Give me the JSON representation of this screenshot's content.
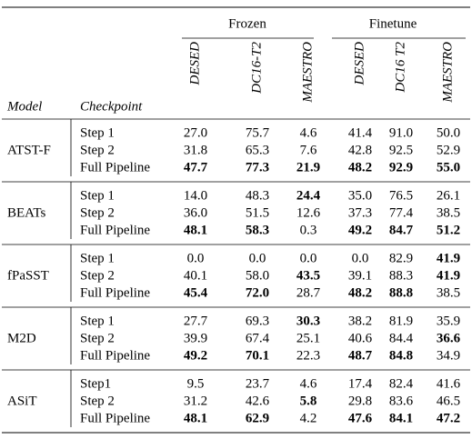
{
  "header": {
    "groups": [
      "Frozen",
      "Finetune"
    ],
    "columns": [
      "Model",
      "Checkpoint",
      "DESED",
      "DC16-T2",
      "MAESTRO",
      "DESED",
      "DC16 T2",
      "MAESTRO"
    ]
  },
  "table": {
    "groups": [
      {
        "model": "ATST-F",
        "rows": [
          {
            "checkpoint": "Step 1",
            "cells": [
              "27.0",
              "75.7",
              "4.6",
              "41.4",
              "91.0",
              "50.0"
            ],
            "bold": []
          },
          {
            "checkpoint": "Step 2",
            "cells": [
              "31.8",
              "65.3",
              "7.6",
              "42.8",
              "92.5",
              "52.9"
            ],
            "bold": []
          },
          {
            "checkpoint": "Full Pipeline",
            "cells": [
              "47.7",
              "77.3",
              "21.9",
              "48.2",
              "92.9",
              "55.0"
            ],
            "bold": [
              0,
              1,
              2,
              3,
              4,
              5
            ]
          }
        ]
      },
      {
        "model": "BEATs",
        "rows": [
          {
            "checkpoint": "Step 1",
            "cells": [
              "14.0",
              "48.3",
              "24.4",
              "35.0",
              "76.5",
              "26.1"
            ],
            "bold": [
              2
            ]
          },
          {
            "checkpoint": "Step 2",
            "cells": [
              "36.0",
              "51.5",
              "12.6",
              "37.3",
              "77.4",
              "38.5"
            ],
            "bold": []
          },
          {
            "checkpoint": "Full Pipeline",
            "cells": [
              "48.1",
              "58.3",
              "0.3",
              "49.2",
              "84.7",
              "51.2"
            ],
            "bold": [
              0,
              1,
              3,
              4,
              5
            ]
          }
        ]
      },
      {
        "model": "fPaSST",
        "rows": [
          {
            "checkpoint": "Step 1",
            "cells": [
              "0.0",
              "0.0",
              "0.0",
              "0.0",
              "82.9",
              "41.9"
            ],
            "bold": [
              5
            ]
          },
          {
            "checkpoint": "Step 2",
            "cells": [
              "40.1",
              "58.0",
              "43.5",
              "39.1",
              "88.3",
              "41.9"
            ],
            "bold": [
              2,
              5
            ]
          },
          {
            "checkpoint": "Full Pipeline",
            "cells": [
              "45.4",
              "72.0",
              "28.7",
              "48.2",
              "88.8",
              "38.5"
            ],
            "bold": [
              0,
              1,
              3,
              4
            ]
          }
        ]
      },
      {
        "model": "M2D",
        "rows": [
          {
            "checkpoint": "Step 1",
            "cells": [
              "27.7",
              "69.3",
              "30.3",
              "38.2",
              "81.9",
              "35.9"
            ],
            "bold": [
              2
            ]
          },
          {
            "checkpoint": "Step 2",
            "cells": [
              "39.9",
              "67.4",
              "25.1",
              "40.6",
              "84.4",
              "36.6"
            ],
            "bold": [
              5
            ]
          },
          {
            "checkpoint": "Full Pipeline",
            "cells": [
              "49.2",
              "70.1",
              "22.3",
              "48.7",
              "84.8",
              "34.9"
            ],
            "bold": [
              0,
              1,
              3,
              4
            ]
          }
        ]
      },
      {
        "model": "ASiT",
        "rows": [
          {
            "checkpoint": "Step1",
            "cells": [
              "9.5",
              "23.7",
              "4.6",
              "17.4",
              "82.4",
              "41.6"
            ],
            "bold": []
          },
          {
            "checkpoint": "Step 2",
            "cells": [
              "31.2",
              "42.6",
              "5.8",
              "29.8",
              "83.6",
              "46.5"
            ],
            "bold": [
              2
            ]
          },
          {
            "checkpoint": "Full Pipeline",
            "cells": [
              "48.1",
              "62.9",
              "4.2",
              "47.6",
              "84.1",
              "47.2"
            ],
            "bold": [
              0,
              1,
              3,
              4,
              5
            ]
          }
        ]
      }
    ]
  }
}
